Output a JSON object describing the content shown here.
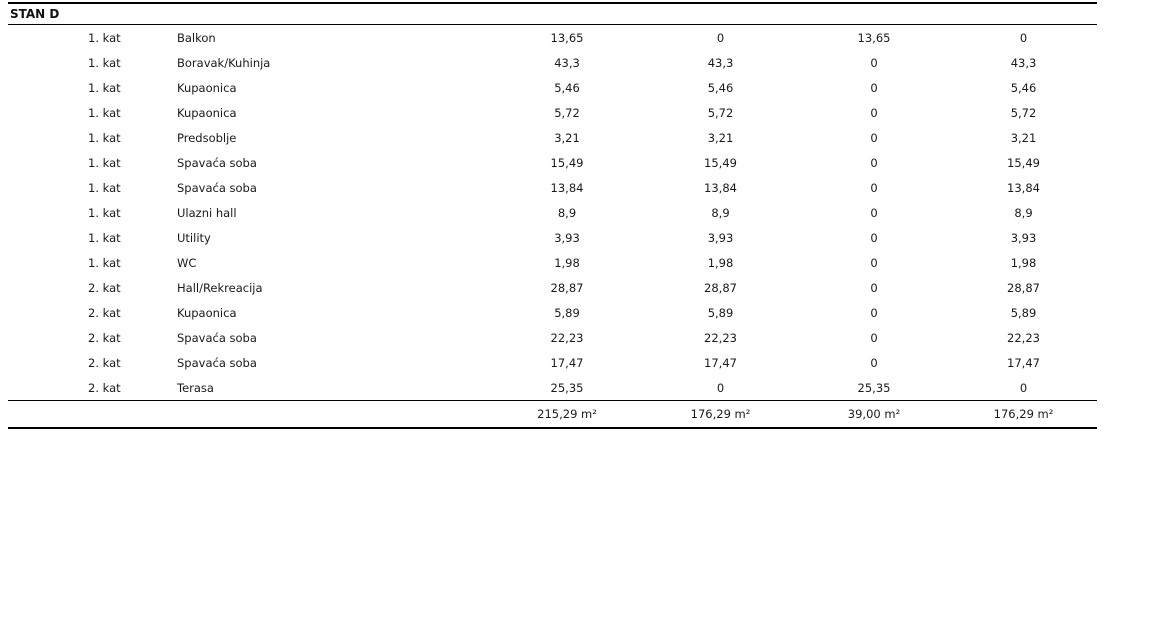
{
  "page": {
    "background_color": "#ffffff",
    "text_color": "#1a1a1a",
    "rule_color": "#000000"
  },
  "table": {
    "title": "STAN D",
    "unit": "m²",
    "rows": [
      {
        "floor": "1. kat",
        "room": "Balkon",
        "values": [
          "13,65",
          "0",
          "13,65",
          "0"
        ]
      },
      {
        "floor": "1. kat",
        "room": "Boravak/Kuhinja",
        "values": [
          "43,3",
          "43,3",
          "0",
          "43,3"
        ]
      },
      {
        "floor": "1. kat",
        "room": "Kupaonica",
        "values": [
          "5,46",
          "5,46",
          "0",
          "5,46"
        ]
      },
      {
        "floor": "1. kat",
        "room": "Kupaonica",
        "values": [
          "5,72",
          "5,72",
          "0",
          "5,72"
        ]
      },
      {
        "floor": "1. kat",
        "room": "Predsoblje",
        "values": [
          "3,21",
          "3,21",
          "0",
          "3,21"
        ]
      },
      {
        "floor": "1. kat",
        "room": "Spavaća soba",
        "values": [
          "15,49",
          "15,49",
          "0",
          "15,49"
        ]
      },
      {
        "floor": "1. kat",
        "room": "Spavaća soba",
        "values": [
          "13,84",
          "13,84",
          "0",
          "13,84"
        ]
      },
      {
        "floor": "1. kat",
        "room": "Ulazni hall",
        "values": [
          "8,9",
          "8,9",
          "0",
          "8,9"
        ]
      },
      {
        "floor": "1. kat",
        "room": "Utility",
        "values": [
          "3,93",
          "3,93",
          "0",
          "3,93"
        ]
      },
      {
        "floor": "1. kat",
        "room": "WC",
        "values": [
          "1,98",
          "1,98",
          "0",
          "1,98"
        ]
      },
      {
        "floor": "2. kat",
        "room": "Hall/Rekreacija",
        "values": [
          "28,87",
          "28,87",
          "0",
          "28,87"
        ]
      },
      {
        "floor": "2. kat",
        "room": "Kupaonica",
        "values": [
          "5,89",
          "5,89",
          "0",
          "5,89"
        ]
      },
      {
        "floor": "2. kat",
        "room": "Spavaća soba",
        "values": [
          "22,23",
          "22,23",
          "0",
          "22,23"
        ]
      },
      {
        "floor": "2. kat",
        "room": "Spavaća soba",
        "values": [
          "17,47",
          "17,47",
          "0",
          "17,47"
        ]
      },
      {
        "floor": "2. kat",
        "room": "Terasa",
        "values": [
          "25,35",
          "0",
          "25,35",
          "0"
        ]
      }
    ],
    "totals": [
      "215,29 m²",
      "176,29 m²",
      "39,00 m²",
      "176,29 m²"
    ]
  }
}
